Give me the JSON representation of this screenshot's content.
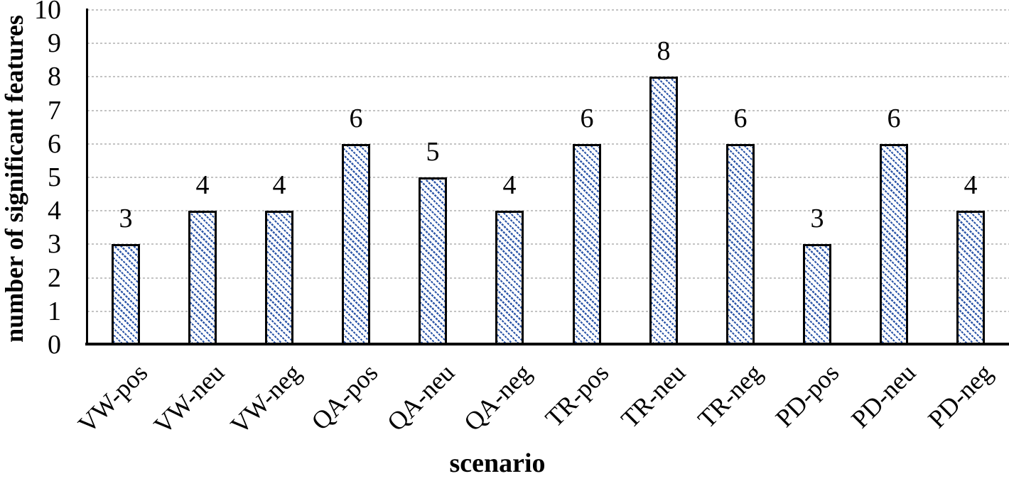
{
  "chart_data": {
    "type": "bar",
    "title": "",
    "categories": [
      "VW-pos",
      "VW-neu",
      "VW-neg",
      "QA-pos",
      "QA-neu",
      "QA-neg",
      "TR-pos",
      "TR-neu",
      "TR-neg",
      "PD-pos",
      "PD-neu",
      "PD-neg"
    ],
    "values": [
      3,
      4,
      4,
      6,
      5,
      4,
      6,
      8,
      6,
      3,
      6,
      4
    ],
    "data_labels": [
      "3",
      "4",
      "4",
      "6",
      "5",
      "4",
      "6",
      "8",
      "6",
      "3",
      "6",
      "4"
    ],
    "xlabel": "scenario",
    "ylabel": "number of significant features",
    "ylim": [
      0,
      10
    ],
    "yticks": [
      0,
      1,
      2,
      3,
      4,
      5,
      6,
      7,
      8,
      9,
      10
    ],
    "grid": {
      "horizontal": true,
      "style": "dashed",
      "color": "#c3c3c3"
    },
    "legend": "none",
    "x_label_rotation_deg": -45,
    "bar_style": {
      "fill_background": "#ffffff",
      "hatch": "diagonal-down-dashed",
      "hatch_color": "#2e57a8",
      "border_color": "#000000"
    },
    "axis_color": "#000000"
  }
}
